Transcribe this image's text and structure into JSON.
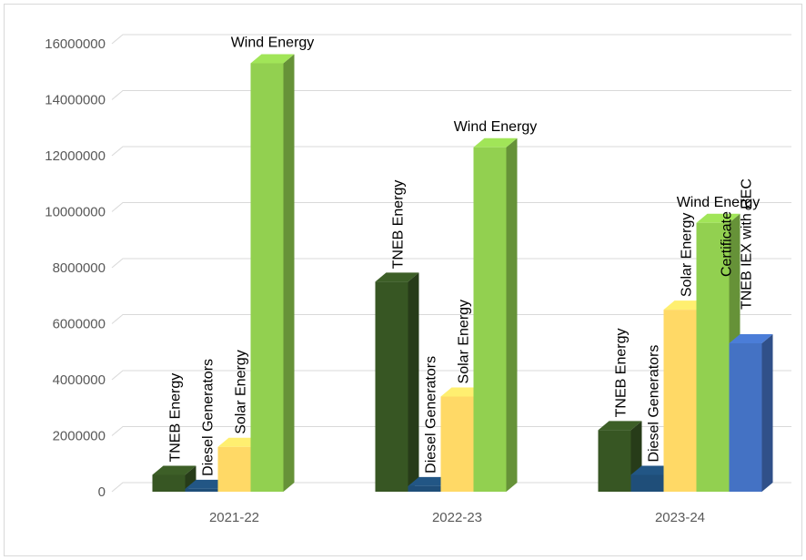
{
  "chart_data": {
    "type": "bar3d",
    "categories": [
      "2021-22",
      "2022-23",
      "2023-24"
    ],
    "series": [
      {
        "name": "TNEB Energy",
        "color": "#375623",
        "values": [
          600000,
          7500000,
          2200000
        ]
      },
      {
        "name": "Diesel Generators",
        "color": "#1f4e79",
        "values": [
          100000,
          200000,
          600000
        ]
      },
      {
        "name": "Solar Energy",
        "color": "#ffd966",
        "values": [
          1600000,
          3400000,
          6500000
        ]
      },
      {
        "name": "Wind Energy",
        "color": "#92d050",
        "values": [
          15300000,
          12300000,
          9600000
        ]
      },
      {
        "name": "TNEB IEX with REC Certificate",
        "color": "#4472c4",
        "values": [
          null,
          null,
          5300000
        ]
      }
    ],
    "ylim": [
      0,
      16000000
    ],
    "yticks": [
      0,
      2000000,
      4000000,
      6000000,
      8000000,
      10000000,
      12000000,
      14000000,
      16000000
    ],
    "grid": true
  }
}
